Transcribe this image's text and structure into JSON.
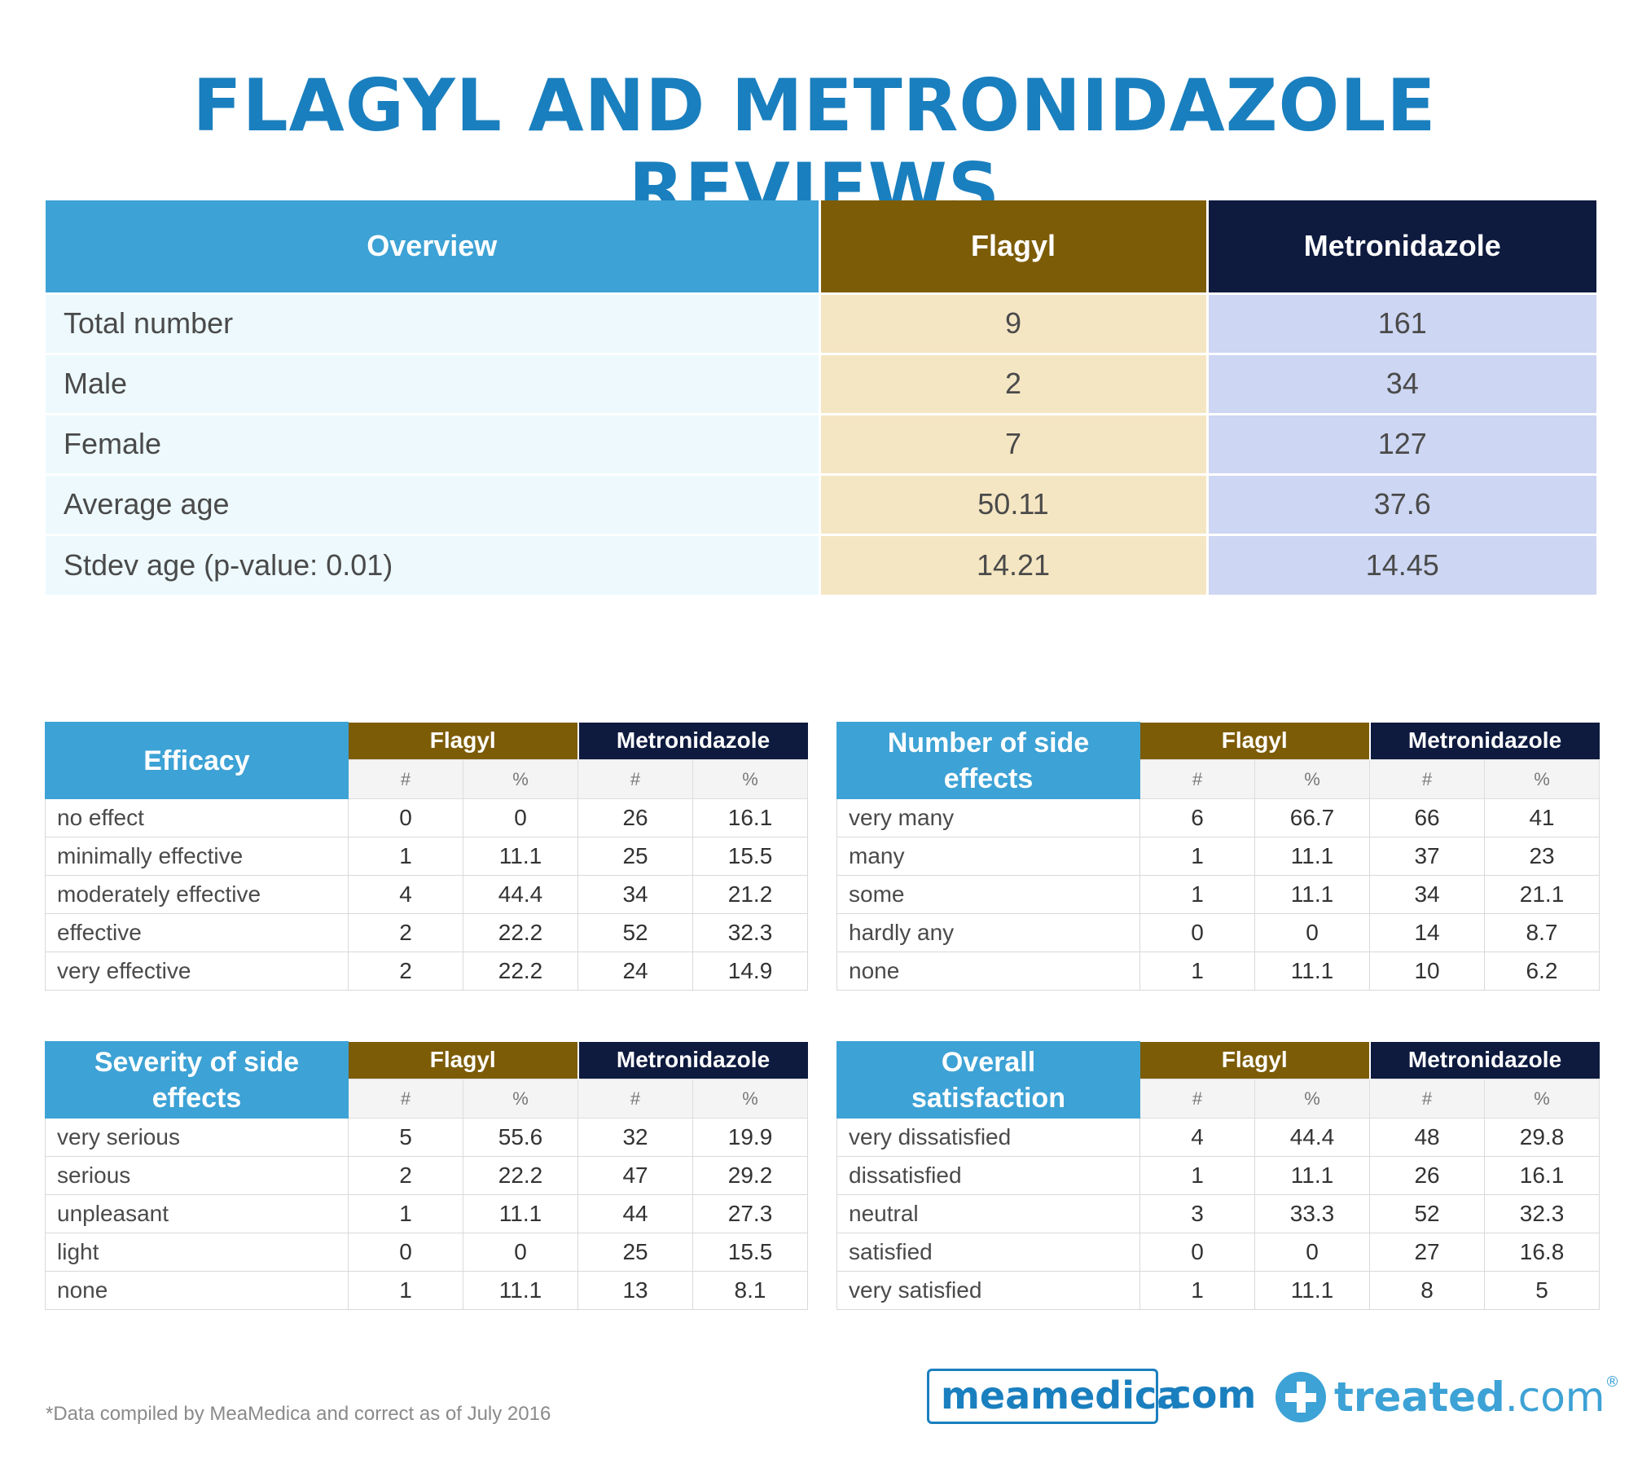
{
  "title": "FLAGYL AND METRONIDAZOLE REVIEWS",
  "overview": {
    "headers": [
      "Overview",
      "Flagyl",
      "Metronidazole"
    ],
    "rows": [
      {
        "label": "Total number",
        "flagyl": "9",
        "metronidazole": "161"
      },
      {
        "label": "Male",
        "flagyl": "2",
        "metronidazole": "34"
      },
      {
        "label": "Female",
        "flagyl": "7",
        "metronidazole": "127"
      },
      {
        "label": "Average age",
        "flagyl": "50.11",
        "metronidazole": "37.6"
      },
      {
        "label": "Stdev age (p-value: 0.01)",
        "flagyl": "14.21",
        "metronidazole": "14.45"
      }
    ]
  },
  "col_flagyl": "Flagyl",
  "col_metronidazole": "Metronidazole",
  "col_count": "#",
  "col_percent": "%",
  "tables": [
    {
      "label": "Efficacy",
      "rows": [
        {
          "label": "no effect",
          "values": [
            "0",
            "0",
            "26",
            "16.1"
          ]
        },
        {
          "label": "minimally effective",
          "values": [
            "1",
            "11.1",
            "25",
            "15.5"
          ]
        },
        {
          "label": "moderately effective",
          "values": [
            "4",
            "44.4",
            "34",
            "21.2"
          ]
        },
        {
          "label": "effective",
          "values": [
            "2",
            "22.2",
            "52",
            "32.3"
          ]
        },
        {
          "label": "very effective",
          "values": [
            "2",
            "22.2",
            "24",
            "14.9"
          ]
        }
      ]
    },
    {
      "label": "Number of side effects",
      "rows": [
        {
          "label": "very many",
          "values": [
            "6",
            "66.7",
            "66",
            "41"
          ]
        },
        {
          "label": "many",
          "values": [
            "1",
            "11.1",
            "37",
            "23"
          ]
        },
        {
          "label": "some",
          "values": [
            "1",
            "11.1",
            "34",
            "21.1"
          ]
        },
        {
          "label": "hardly any",
          "values": [
            "0",
            "0",
            "14",
            "8.7"
          ]
        },
        {
          "label": "none",
          "values": [
            "1",
            "11.1",
            "10",
            "6.2"
          ]
        }
      ]
    },
    {
      "label": "Severity of side effects",
      "rows": [
        {
          "label": "very serious",
          "values": [
            "5",
            "55.6",
            "32",
            "19.9"
          ]
        },
        {
          "label": "serious",
          "values": [
            "2",
            "22.2",
            "47",
            "29.2"
          ]
        },
        {
          "label": "unpleasant",
          "values": [
            "1",
            "11.1",
            "44",
            "27.3"
          ]
        },
        {
          "label": "light",
          "values": [
            "0",
            "0",
            "25",
            "15.5"
          ]
        },
        {
          "label": "none",
          "values": [
            "1",
            "11.1",
            "13",
            "8.1"
          ]
        }
      ]
    },
    {
      "label": "Overall satisfaction",
      "rows": [
        {
          "label": "very dissatisfied",
          "values": [
            "4",
            "44.4",
            "48",
            "29.8"
          ]
        },
        {
          "label": "dissatisfied",
          "values": [
            "1",
            "11.1",
            "26",
            "16.1"
          ]
        },
        {
          "label": "neutral",
          "values": [
            "3",
            "33.3",
            "52",
            "32.3"
          ]
        },
        {
          "label": "satisfied",
          "values": [
            "0",
            "0",
            "27",
            "16.8"
          ]
        },
        {
          "label": "very satisfied",
          "values": [
            "1",
            "11.1",
            "8",
            "5"
          ]
        }
      ]
    }
  ],
  "footnote": "*Data compiled by MeaMedica and correct as of July 2016",
  "logos": {
    "meamedica": "meamedica",
    "meamedica_suffix": ".com",
    "treated": "treated",
    "treated_suffix": ".com",
    "registered": "®",
    "treated_icon": "plus-circle-icon",
    "brand_color": "#1a7fbe",
    "accent_color": "#3da2d5"
  }
}
